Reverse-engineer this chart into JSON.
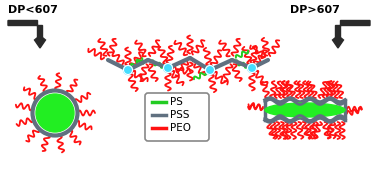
{
  "bg_color": "#ffffff",
  "ps_color": "#22cc22",
  "pss_color": "#607080",
  "peo_color": "#ff1111",
  "node_color": "#44ddff",
  "green_fill": "#22ee22",
  "label_dp_less": "DP<607",
  "label_dp_more": "DP>607",
  "legend_labels": [
    "PS",
    "PSS",
    "PEO"
  ],
  "legend_colors": [
    "#22cc22",
    "#607080",
    "#ff1111"
  ],
  "figw": 3.78,
  "figh": 1.78,
  "dpi": 100
}
